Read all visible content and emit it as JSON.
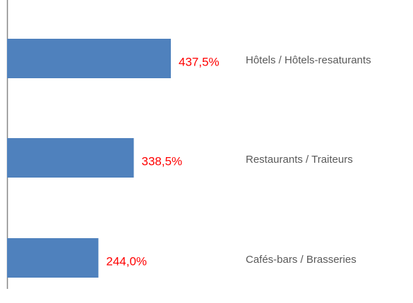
{
  "chart_data": {
    "type": "bar",
    "orientation": "horizontal",
    "categories": [
      "Hôtels / Hôtels-resaturants",
      "Restaurants / Traiteurs",
      "Cafés-bars / Brasseries"
    ],
    "values": [
      437.5,
      338.5,
      244.0
    ],
    "value_labels": [
      "437,5%",
      "338,5%",
      "244,0%"
    ],
    "color": "#4f81bd",
    "label_color": "#ff0000"
  }
}
